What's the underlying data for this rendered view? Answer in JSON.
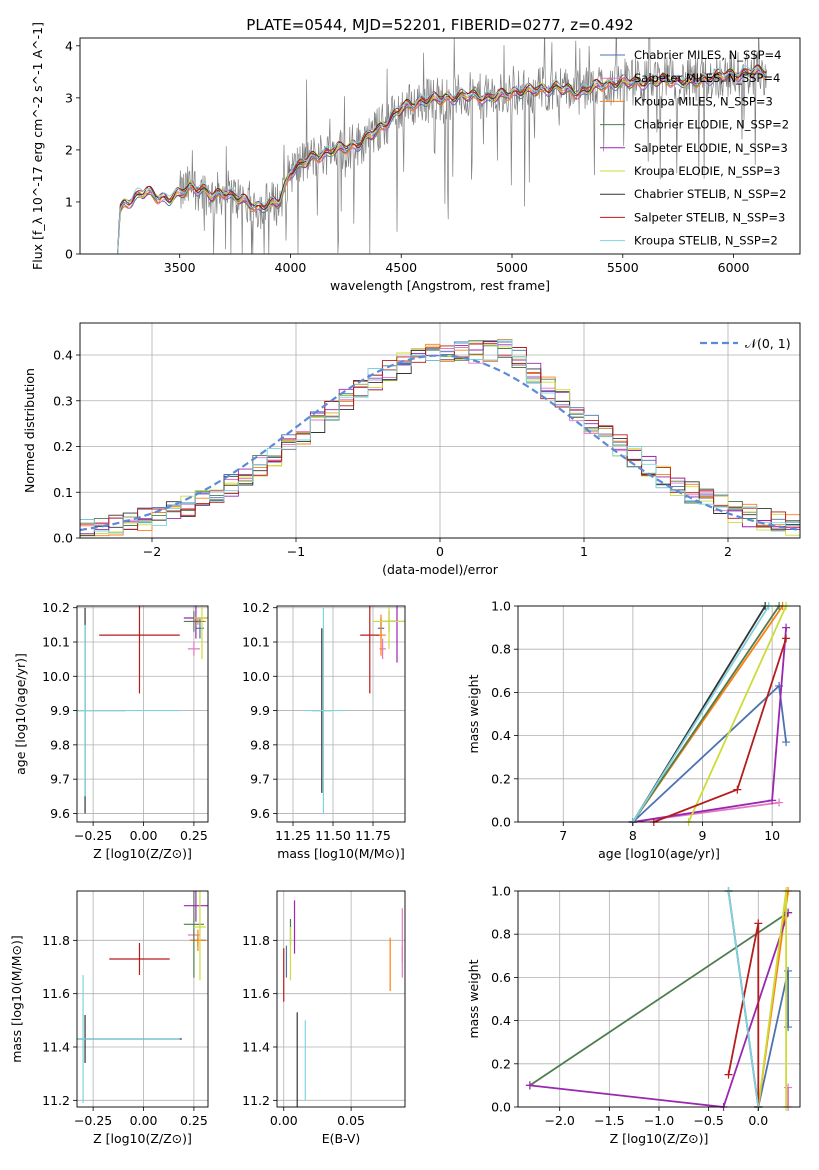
{
  "figure": {
    "title": "PLATE=0544, MJD=52201, FIBERID=0277, z=0.492"
  },
  "colors": {
    "Chabrier MILES": "#4c72b0",
    "Salpeter MILES": "#e377c2",
    "Kroupa MILES": "#ff7f0e",
    "Chabrier ELODIE": "#4f7d4f",
    "Salpeter ELODIE": "#9b27b0",
    "Kroupa ELODIE": "#cddc39",
    "Chabrier STELIB": "#333333",
    "Salpeter STELIB": "#b71c1c",
    "Kroupa STELIB": "#7fd3e0",
    "data_gray": "#808080",
    "normal_curve": "#5b8bd8"
  },
  "chart_data": [
    {
      "id": "spectrum",
      "type": "line",
      "xlabel": "wavelength [Angstrom, rest frame]",
      "ylabel": "Flux [f_λ 10^-17 erg cm^-2 s^-1 A^-1]",
      "xlim": [
        3050,
        6300
      ],
      "ylim": [
        0,
        4.15
      ],
      "xticks": [
        3500,
        4000,
        4500,
        5000,
        5500,
        6000
      ],
      "yticks": [
        0,
        1,
        2,
        3,
        4
      ],
      "grid": false,
      "legend_position": "top-right",
      "legend": [
        {
          "label": "Chabrier MILES, N_SSP=4",
          "color": "#4c72b0"
        },
        {
          "label": "Salpeter MILES, N_SSP=4",
          "color": "#e377c2"
        },
        {
          "label": "Kroupa MILES, N_SSP=3",
          "color": "#ff7f0e"
        },
        {
          "label": "Chabrier ELODIE, N_SSP=2",
          "color": "#4f7d4f"
        },
        {
          "label": "Salpeter ELODIE, N_SSP=3",
          "color": "#9b27b0"
        },
        {
          "label": "Kroupa ELODIE, N_SSP=3",
          "color": "#cddc39"
        },
        {
          "label": "Chabrier STELIB, N_SSP=2",
          "color": "#333333"
        },
        {
          "label": "Salpeter STELIB, N_SSP=3",
          "color": "#b71c1c"
        },
        {
          "label": "Kroupa STELIB, N_SSP=2",
          "color": "#7fd3e0"
        }
      ],
      "model_anchor_points": {
        "x": [
          3220,
          3230,
          3250,
          3300,
          3350,
          3400,
          3450,
          3500,
          3550,
          3600,
          3650,
          3700,
          3750,
          3800,
          3850,
          3900,
          3950,
          4000,
          4100,
          4200,
          4300,
          4400,
          4500,
          4600,
          4700,
          4800,
          4900,
          5000,
          5100,
          5200,
          5300,
          5400,
          5500,
          5600,
          5700,
          5800,
          5900,
          6000,
          6100,
          6150
        ],
        "y": [
          0,
          0.85,
          0.95,
          1.1,
          1.2,
          1.1,
          1.05,
          1.15,
          1.3,
          1.25,
          1.1,
          1.2,
          1.1,
          1.0,
          0.9,
          0.95,
          1.0,
          1.6,
          1.85,
          2.0,
          2.1,
          2.4,
          2.8,
          2.95,
          3.0,
          3.05,
          3.0,
          3.1,
          3.15,
          3.2,
          3.1,
          3.25,
          3.3,
          3.3,
          3.35,
          3.3,
          3.4,
          3.45,
          3.5,
          3.5
        ]
      },
      "data_x_range": [
        3500,
        6150
      ]
    },
    {
      "id": "residuals",
      "type": "bar",
      "xlabel": "(data-model)/error",
      "ylabel": "Normed distribution",
      "xlim": [
        -2.5,
        2.5
      ],
      "ylim": [
        0,
        0.47
      ],
      "xticks": [
        -2,
        -1,
        0,
        1,
        2
      ],
      "yticks": [
        0.0,
        0.1,
        0.2,
        0.3,
        0.4
      ],
      "grid": true,
      "legend_position": "top-right",
      "legend": [
        {
          "label": "𝒩(0, 1)",
          "color": "#5b8bd8",
          "dash": true
        }
      ],
      "bin_width": 0.1,
      "bin_start": -2.5,
      "profile": [
        0.02,
        0.02,
        0.025,
        0.03,
        0.035,
        0.04,
        0.05,
        0.06,
        0.075,
        0.085,
        0.1,
        0.115,
        0.13,
        0.145,
        0.165,
        0.185,
        0.205,
        0.22,
        0.24,
        0.26,
        0.28,
        0.3,
        0.31,
        0.33,
        0.35,
        0.37,
        0.39,
        0.38,
        0.38,
        0.37,
        0.35,
        0.33,
        0.32,
        0.34,
        0.4,
        0.42,
        0.43,
        0.38,
        0.35,
        0.34,
        0.32,
        0.31,
        0.3,
        0.28,
        0.26,
        0.24,
        0.2,
        0.19,
        0.2,
        0.17,
        0.15,
        0.13,
        0.12,
        0.1,
        0.09,
        0.08,
        0.075,
        0.07,
        0.06,
        0.055,
        0.05,
        0.045,
        0.04,
        0.04,
        0.035,
        0.03,
        0.03,
        0.03,
        0.025,
        0.025,
        0.02,
        0.02,
        0.02,
        0.02,
        0.02,
        0.02,
        0.02,
        0.02,
        0.02,
        0.02,
        0.02,
        0.02,
        0.02,
        0.02,
        0.02,
        0.02,
        0.02,
        0.02,
        0.02,
        0.02,
        0.02,
        0.02,
        0.02,
        0.02,
        0.02,
        0.02,
        0.02,
        0.02,
        0.02,
        0.02
      ]
    },
    {
      "id": "age_vs_Z",
      "type": "scatter",
      "xlabel": "Z [log10(Z/Z⊙)]",
      "ylabel": "age  [log10(age/yr)]",
      "xlim": [
        -0.33,
        0.32
      ],
      "ylim": [
        9.575,
        10.205
      ],
      "xticks": [
        -0.25,
        0.0,
        0.25
      ],
      "xtick_labels": [
        "−0.25",
        "0.00",
        "0.25"
      ],
      "yticks": [
        9.6,
        9.7,
        9.8,
        9.9,
        10.0,
        10.1,
        10.2
      ],
      "grid": true,
      "points": [
        {
          "model": "Chabrier MILES",
          "x": 0.28,
          "y": 10.14,
          "xerr": 0.02,
          "yerr": 0.03
        },
        {
          "model": "Salpeter MILES",
          "x": 0.25,
          "y": 10.08,
          "xerr": 0.03,
          "yerr": 0.02
        },
        {
          "model": "Kroupa MILES",
          "x": 0.27,
          "y": 10.16,
          "xerr": 0.04,
          "yerr": 0.01
        },
        {
          "model": "Chabrier ELODIE",
          "x": 0.25,
          "y": 10.16,
          "xerr": 0.05,
          "yerr": 0.03
        },
        {
          "model": "Salpeter ELODIE",
          "x": 0.26,
          "y": 10.17,
          "xerr": 0.06,
          "yerr": 0.06
        },
        {
          "model": "Kroupa ELODIE",
          "x": 0.29,
          "y": 10.17,
          "xerr": 0.04,
          "yerr": 0.12
        },
        {
          "model": "Chabrier STELIB",
          "x": -0.29,
          "y": 9.9,
          "xerr": 0.2,
          "yerr": 0.3
        },
        {
          "model": "Salpeter STELIB",
          "x": -0.02,
          "y": 10.12,
          "xerr": 0.2,
          "yerr": 0.17
        },
        {
          "model": "Kroupa STELIB",
          "x": -0.29,
          "y": 9.9,
          "xerr": 0.48,
          "yerr": 0.25
        }
      ]
    },
    {
      "id": "age_vs_mass",
      "type": "scatter",
      "xlabel": "mass [log10(M/M⊙)]",
      "ylabel": "",
      "xlim": [
        11.15,
        11.95
      ],
      "ylim": [
        9.575,
        10.205
      ],
      "xticks": [
        11.25,
        11.5,
        11.75
      ],
      "xtick_labels": [
        "11.25",
        "11.50",
        "11.75"
      ],
      "yticks": [
        9.6,
        9.7,
        9.8,
        9.9,
        10.0,
        10.1,
        10.2
      ],
      "grid": true,
      "points": [
        {
          "model": "Chabrier MILES",
          "x": 11.8,
          "y": 10.14,
          "xerr": 0.02,
          "yerr": 0.03
        },
        {
          "model": "Salpeter MILES",
          "x": 11.81,
          "y": 10.08,
          "xerr": 0.02,
          "yerr": 0.03
        },
        {
          "model": "Kroupa MILES",
          "x": 11.8,
          "y": 10.12,
          "xerr": 0.03,
          "yerr": 0.06
        },
        {
          "model": "Chabrier ELODIE",
          "x": 11.85,
          "y": 10.16,
          "xerr": 0.05,
          "yerr": 0.03
        },
        {
          "model": "Salpeter ELODIE",
          "x": 11.9,
          "y": 10.16,
          "xerr": 0.06,
          "yerr": 0.12
        },
        {
          "model": "Kroupa ELODIE",
          "x": 11.85,
          "y": 10.16,
          "xerr": 0.1,
          "yerr": 0.08
        },
        {
          "model": "Chabrier STELIB",
          "x": 11.43,
          "y": 9.9,
          "xerr": 0.06,
          "yerr": 0.24
        },
        {
          "model": "Salpeter STELIB",
          "x": 11.73,
          "y": 10.12,
          "xerr": 0.06,
          "yerr": 0.17
        },
        {
          "model": "Kroupa STELIB",
          "x": 11.44,
          "y": 9.9,
          "xerr": 0.13,
          "yerr": 0.3
        }
      ]
    },
    {
      "id": "massweight_vs_age",
      "type": "line",
      "xlabel": "age  [log10(age/yr)]",
      "ylabel": "mass weight",
      "xlim": [
        6.35,
        10.4
      ],
      "ylim": [
        0,
        1.0
      ],
      "xticks": [
        7,
        8,
        9,
        10
      ],
      "yticks": [
        0.0,
        0.2,
        0.4,
        0.6,
        0.8,
        1.0
      ],
      "grid": true,
      "series": [
        {
          "model": "Chabrier MILES",
          "x": [
            8.0,
            10.1,
            10.2
          ],
          "y": [
            0.0,
            0.63,
            0.37
          ]
        },
        {
          "model": "Salpeter MILES",
          "x": [
            8.0,
            10.1
          ],
          "y": [
            0.0,
            0.09
          ]
        },
        {
          "model": "Kroupa MILES",
          "x": [
            8.0,
            10.15
          ],
          "y": [
            0.0,
            1.0
          ]
        },
        {
          "model": "Chabrier ELODIE",
          "x": [
            8.0,
            10.1
          ],
          "y": [
            0.0,
            1.0
          ]
        },
        {
          "model": "Salpeter ELODIE",
          "x": [
            8.0,
            10.0,
            10.2
          ],
          "y": [
            0.0,
            0.1,
            0.9
          ]
        },
        {
          "model": "Kroupa ELODIE",
          "x": [
            8.8,
            10.2
          ],
          "y": [
            0.0,
            1.0
          ]
        },
        {
          "model": "Chabrier STELIB",
          "x": [
            8.0,
            9.9
          ],
          "y": [
            0.0,
            1.0
          ]
        },
        {
          "model": "Salpeter STELIB",
          "x": [
            8.3,
            9.5,
            10.2
          ],
          "y": [
            0.0,
            0.15,
            0.85
          ]
        },
        {
          "model": "Kroupa STELIB",
          "x": [
            8.0,
            9.95
          ],
          "y": [
            0.0,
            1.0
          ]
        }
      ]
    },
    {
      "id": "mass_vs_Z",
      "type": "scatter",
      "xlabel": "Z [log10(Z/Z⊙)]",
      "ylabel": "mass [log10(M/M⊙)]",
      "xlim": [
        -0.33,
        0.32
      ],
      "ylim": [
        11.175,
        11.985
      ],
      "xticks": [
        -0.25,
        0.0,
        0.25
      ],
      "xtick_labels": [
        "−0.25",
        "0.00",
        "0.25"
      ],
      "yticks": [
        11.2,
        11.4,
        11.6,
        11.8
      ],
      "grid": true,
      "points": [
        {
          "model": "Chabrier MILES",
          "x": 0.27,
          "y": 11.8,
          "xerr": 0.04,
          "yerr": 0.02
        },
        {
          "model": "Salpeter MILES",
          "x": 0.25,
          "y": 11.82,
          "xerr": 0.03,
          "yerr": 0.02
        },
        {
          "model": "Kroupa MILES",
          "x": 0.27,
          "y": 11.8,
          "xerr": 0.04,
          "yerr": 0.04
        },
        {
          "model": "Chabrier ELODIE",
          "x": 0.25,
          "y": 11.86,
          "xerr": 0.05,
          "yerr": 0.2
        },
        {
          "model": "Salpeter ELODIE",
          "x": 0.26,
          "y": 11.93,
          "xerr": 0.06,
          "yerr": 0.06
        },
        {
          "model": "Kroupa ELODIE",
          "x": 0.28,
          "y": 11.85,
          "xerr": 0.03,
          "yerr": 0.2
        },
        {
          "model": "Chabrier STELIB",
          "x": -0.29,
          "y": 11.43,
          "xerr": 0.48,
          "yerr": 0.09
        },
        {
          "model": "Salpeter STELIB",
          "x": -0.02,
          "y": 11.73,
          "xerr": 0.15,
          "yerr": 0.06
        },
        {
          "model": "Kroupa STELIB",
          "x": -0.3,
          "y": 11.43,
          "xerr": 0.48,
          "yerr": 0.24
        }
      ]
    },
    {
      "id": "mass_vs_ebv",
      "type": "scatter",
      "xlabel": "E(B-V)",
      "ylabel": "",
      "xlim": [
        -0.005,
        0.09
      ],
      "ylim": [
        11.175,
        11.985
      ],
      "xticks": [
        0.0,
        0.05
      ],
      "xtick_labels": [
        "0.00",
        "0.05"
      ],
      "yticks": [
        11.2,
        11.4,
        11.6,
        11.8
      ],
      "grid": true,
      "points": [
        {
          "model": "Chabrier MILES",
          "x": 0.002,
          "y": 11.72,
          "xerr": 0,
          "yerr": 0.06
        },
        {
          "model": "Salpeter MILES",
          "x": 0.088,
          "y": 11.82,
          "xerr": 0,
          "yerr": 0.1
        },
        {
          "model": "Kroupa MILES",
          "x": 0.079,
          "y": 11.71,
          "xerr": 0,
          "yerr": 0.1
        },
        {
          "model": "Chabrier ELODIE",
          "x": 0.005,
          "y": 11.83,
          "xerr": 0,
          "yerr": 0.05
        },
        {
          "model": "Salpeter ELODIE",
          "x": 0.008,
          "y": 11.85,
          "xerr": 0,
          "yerr": 0.1
        },
        {
          "model": "Kroupa ELODIE",
          "x": 0.005,
          "y": 11.75,
          "xerr": 0,
          "yerr": 0.1
        },
        {
          "model": "Chabrier STELIB",
          "x": 0.01,
          "y": 11.35,
          "xerr": 0,
          "yerr": 0.18
        },
        {
          "model": "Salpeter STELIB",
          "x": 0.0,
          "y": 11.67,
          "xerr": 0,
          "yerr": 0.1
        },
        {
          "model": "Kroupa STELIB",
          "x": 0.016,
          "y": 11.35,
          "xerr": 0,
          "yerr": 0.15
        },
        {
          "model": "Salpeter MILES",
          "x": 0.088,
          "y": 11.72,
          "xerr": 0,
          "yerr": 0.06
        }
      ]
    },
    {
      "id": "massweight_vs_Z",
      "type": "line",
      "xlabel": "Z [log10(Z/Z⊙)]",
      "ylabel": "mass weight",
      "xlim": [
        -2.42,
        0.42
      ],
      "ylim": [
        0,
        1.0
      ],
      "xticks": [
        -2.0,
        -1.5,
        -1.0,
        -0.5,
        0.0
      ],
      "xtick_labels": [
        "−2.0",
        "−1.5",
        "−1.0",
        "−0.5",
        "0.0"
      ],
      "yticks": [
        0.0,
        0.2,
        0.4,
        0.6,
        0.8,
        1.0
      ],
      "grid": true,
      "series": [
        {
          "model": "Chabrier MILES",
          "x": [
            0.0,
            0.3,
            0.3
          ],
          "y": [
            0.0,
            0.63,
            0.37
          ]
        },
        {
          "model": "Salpeter MILES",
          "x": [
            0.3,
            0.3
          ],
          "y": [
            0.0,
            0.09
          ]
        },
        {
          "model": "Kroupa MILES",
          "x": [
            0.0,
            0.3
          ],
          "y": [
            0.0,
            1.0
          ]
        },
        {
          "model": "Chabrier ELODIE",
          "x": [
            -2.3,
            0.3
          ],
          "y": [
            0.1,
            0.9
          ]
        },
        {
          "model": "Salpeter ELODIE",
          "x": [
            -2.3,
            -0.35,
            0.3
          ],
          "y": [
            0.1,
            0.0,
            0.9
          ]
        },
        {
          "model": "Kroupa ELODIE",
          "x": [
            0.0,
            0.28,
            0.28
          ],
          "y": [
            0.0,
            1.0,
            0.0
          ]
        },
        {
          "model": "Chabrier STELIB",
          "x": [
            0.0,
            -0.3
          ],
          "y": [
            0.0,
            1.0
          ]
        },
        {
          "model": "Salpeter STELIB",
          "x": [
            -0.3,
            0.0,
            0.0
          ],
          "y": [
            0.15,
            0.85,
            0.0
          ]
        },
        {
          "model": "Kroupa STELIB",
          "x": [
            0.0,
            -0.3
          ],
          "y": [
            0.0,
            1.0
          ]
        }
      ]
    }
  ]
}
